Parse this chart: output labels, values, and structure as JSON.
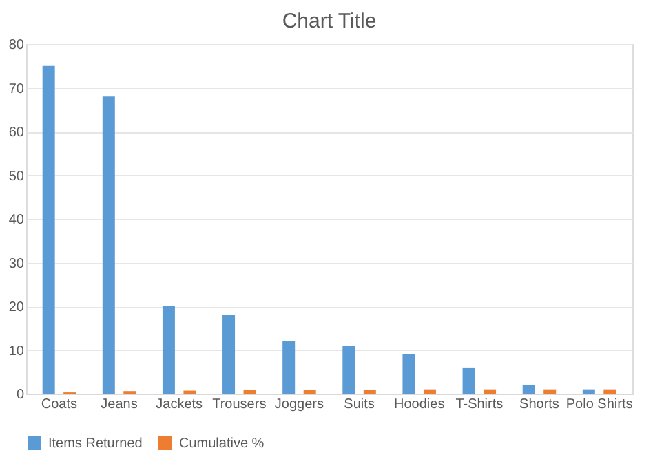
{
  "chart_data": {
    "type": "bar",
    "title": "Chart Title",
    "categories": [
      "Coats",
      "Jeans",
      "Jackets",
      "Trousers",
      "Joggers",
      "Suits",
      "Hoodies",
      "T-Shirts",
      "Shorts",
      "Polo Shirts"
    ],
    "series": [
      {
        "name": "Items Returned",
        "color": "#5b9bd5",
        "values": [
          75,
          68,
          20,
          18,
          12,
          11,
          9,
          6,
          2,
          1
        ]
      },
      {
        "name": "Cumulative %",
        "color": "#ed7d31",
        "values": [
          0.3,
          0.6,
          0.7,
          0.8,
          0.9,
          0.9,
          1,
          1,
          1,
          1
        ]
      }
    ],
    "ylim": [
      0,
      80
    ],
    "yticks": [
      0,
      10,
      20,
      30,
      40,
      50,
      60,
      70,
      80
    ],
    "grid": "y",
    "legend": "bottom"
  }
}
